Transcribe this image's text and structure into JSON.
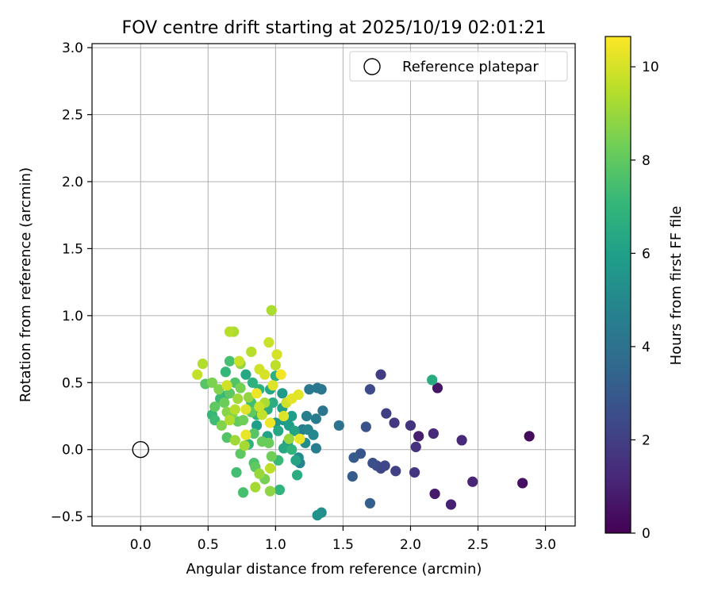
{
  "chart_data": {
    "type": "scatter",
    "title": "FOV centre drift starting at 2025/10/19 02:01:21",
    "xlabel": "Angular distance from reference (arcmin)",
    "ylabel": "Rotation from reference (arcmin)",
    "xlim": [
      -0.36,
      3.22
    ],
    "ylim": [
      -0.57,
      3.03
    ],
    "xticks": [
      0.0,
      0.5,
      1.0,
      1.5,
      2.0,
      2.5,
      3.0
    ],
    "xtick_labels": [
      "0.0",
      "0.5",
      "1.0",
      "1.5",
      "2.0",
      "2.5",
      "3.0"
    ],
    "yticks": [
      -0.5,
      0.0,
      0.5,
      1.0,
      1.5,
      2.0,
      2.5,
      3.0
    ],
    "ytick_labels": [
      "−0.5",
      "0.0",
      "0.5",
      "1.0",
      "1.5",
      "2.0",
      "2.5",
      "3.0"
    ],
    "grid": true,
    "legend": {
      "position": "top-right",
      "entries": [
        {
          "label": "Reference platepar",
          "marker": "open-circle"
        }
      ]
    },
    "reference_point": {
      "x": 0.0,
      "y": 0.0
    },
    "colorbar": {
      "label": "Hours from first FF file",
      "colormap": "viridis",
      "range": [
        0,
        10.65
      ],
      "ticks": [
        0,
        2,
        4,
        6,
        8,
        10
      ],
      "tick_labels": [
        "0",
        "2",
        "4",
        "6",
        "8",
        "10"
      ],
      "stops": [
        "#440154",
        "#482878",
        "#3e4989",
        "#31688e",
        "#26828e",
        "#1f9e89",
        "#35b779",
        "#6ece58",
        "#b5de2b",
        "#fde725"
      ]
    },
    "series": [
      {
        "name": "FOV centre",
        "points": [
          [
            2.88,
            0.1,
            0.3
          ],
          [
            2.83,
            -0.25,
            0.5
          ],
          [
            2.2,
            0.46,
            0.6
          ],
          [
            2.18,
            -0.33,
            0.8
          ],
          [
            2.06,
            0.1,
            0.9
          ],
          [
            2.3,
            -0.41,
            1.0
          ],
          [
            2.46,
            -0.24,
            1.1
          ],
          [
            2.38,
            0.07,
            1.2
          ],
          [
            2.17,
            0.12,
            1.3
          ],
          [
            2.04,
            0.02,
            1.5
          ],
          [
            2.0,
            0.18,
            1.6
          ],
          [
            2.03,
            -0.17,
            1.7
          ],
          [
            1.88,
            0.2,
            1.8
          ],
          [
            1.78,
            0.56,
            1.9
          ],
          [
            1.82,
            0.27,
            2.0
          ],
          [
            1.89,
            -0.16,
            2.1
          ],
          [
            1.78,
            -0.14,
            2.2
          ],
          [
            1.81,
            -0.12,
            2.3
          ],
          [
            1.75,
            -0.12,
            2.4
          ],
          [
            1.7,
            0.45,
            2.4
          ],
          [
            1.72,
            -0.1,
            2.6
          ],
          [
            1.67,
            0.17,
            2.7
          ],
          [
            1.63,
            -0.03,
            2.8
          ],
          [
            1.58,
            -0.06,
            3.0
          ],
          [
            1.57,
            -0.2,
            3.1
          ],
          [
            1.7,
            -0.4,
            3.2
          ],
          [
            1.47,
            0.18,
            4.0
          ],
          [
            1.35,
            0.29,
            4.1
          ],
          [
            1.34,
            0.45,
            4.2
          ],
          [
            1.31,
            0.46,
            4.3
          ],
          [
            1.25,
            0.45,
            4.3
          ],
          [
            1.3,
            0.23,
            4.4
          ],
          [
            1.3,
            0.01,
            4.5
          ],
          [
            1.23,
            0.25,
            4.6
          ],
          [
            1.2,
            0.15,
            4.6
          ],
          [
            1.18,
            -0.1,
            4.8
          ],
          [
            1.24,
            0.15,
            4.9
          ],
          [
            1.28,
            0.11,
            5.0
          ],
          [
            1.17,
            -0.06,
            5.1
          ],
          [
            1.34,
            -0.47,
            5.3
          ],
          [
            1.31,
            -0.49,
            5.4
          ],
          [
            1.09,
            0.05,
            5.6
          ],
          [
            1.05,
            0.42,
            5.8
          ],
          [
            1.1,
            0.18,
            5.9
          ],
          [
            1.12,
            0.25,
            5.9
          ],
          [
            1.05,
            0.31,
            6.0
          ],
          [
            1.15,
            -0.08,
            6.2
          ],
          [
            1.02,
            0.14,
            6.3
          ],
          [
            0.96,
            0.45,
            6.3
          ],
          [
            1.06,
            0.01,
            6.4
          ],
          [
            2.16,
            0.52,
            6.5
          ],
          [
            1.16,
            -0.19,
            6.6
          ],
          [
            0.94,
            0.3,
            6.6
          ],
          [
            1.0,
            0.55,
            6.7
          ],
          [
            0.83,
            0.5,
            6.8
          ],
          [
            1.03,
            -0.3,
            6.9
          ],
          [
            1.12,
            0.0,
            6.9
          ],
          [
            0.86,
            0.26,
            7.0
          ],
          [
            0.63,
            0.58,
            7.1
          ],
          [
            0.53,
            0.26,
            7.1
          ],
          [
            0.59,
            0.38,
            7.2
          ],
          [
            0.55,
            0.22,
            7.3
          ],
          [
            0.71,
            -0.17,
            7.4
          ],
          [
            0.76,
            -0.32,
            7.5
          ],
          [
            0.66,
            0.66,
            7.5
          ],
          [
            0.84,
            -0.1,
            7.6
          ],
          [
            0.64,
            0.09,
            7.7
          ],
          [
            0.48,
            0.49,
            7.8
          ],
          [
            0.74,
            -0.03,
            7.9
          ],
          [
            0.85,
            -0.13,
            8.0
          ],
          [
            0.55,
            0.32,
            8.0
          ],
          [
            0.72,
            0.21,
            8.1
          ],
          [
            0.62,
            0.35,
            8.2
          ],
          [
            0.9,
            0.06,
            8.2
          ],
          [
            0.97,
            -0.05,
            8.3
          ],
          [
            0.92,
            -0.22,
            8.4
          ],
          [
            0.53,
            0.5,
            8.5
          ],
          [
            0.58,
            0.45,
            8.6
          ],
          [
            0.68,
            0.27,
            8.7
          ],
          [
            0.96,
            -0.31,
            8.8
          ],
          [
            0.8,
            0.39,
            8.9
          ],
          [
            0.88,
            -0.18,
            9.0
          ],
          [
            0.7,
            0.07,
            9.1
          ],
          [
            0.77,
            0.03,
            9.2
          ],
          [
            0.85,
            -0.28,
            9.2
          ],
          [
            0.69,
            0.88,
            9.3
          ],
          [
            0.97,
            1.04,
            9.3
          ],
          [
            0.46,
            0.64,
            9.4
          ],
          [
            0.66,
            0.88,
            9.5
          ],
          [
            0.82,
            0.73,
            9.5
          ],
          [
            0.96,
            -0.14,
            9.6
          ],
          [
            1.0,
            0.63,
            9.6
          ],
          [
            0.42,
            0.56,
            9.7
          ],
          [
            0.73,
            0.66,
            9.8
          ],
          [
            0.95,
            0.8,
            9.8
          ],
          [
            0.88,
            0.6,
            9.9
          ],
          [
            0.64,
            0.48,
            9.9
          ],
          [
            1.01,
            0.71,
            10.0
          ],
          [
            1.06,
            0.25,
            10.1
          ],
          [
            0.98,
            0.48,
            10.1
          ],
          [
            1.17,
            0.41,
            10.2
          ],
          [
            1.18,
            0.08,
            10.3
          ],
          [
            0.78,
            0.11,
            10.3
          ],
          [
            0.86,
            0.42,
            10.4
          ],
          [
            1.04,
            0.56,
            10.5
          ],
          [
            0.74,
            0.64,
            8.9
          ],
          [
            0.6,
            0.18,
            8.6
          ],
          [
            0.66,
            0.42,
            7.9
          ],
          [
            0.7,
            0.5,
            7.7
          ],
          [
            0.82,
            0.35,
            7.4
          ],
          [
            0.88,
            0.45,
            6.8
          ],
          [
            0.78,
            0.56,
            6.4
          ],
          [
            0.94,
            0.1,
            6.1
          ],
          [
            1.0,
            0.2,
            5.6
          ],
          [
            0.92,
            0.35,
            9.3
          ],
          [
            0.76,
            0.22,
            8.3
          ],
          [
            0.84,
            0.12,
            7.8
          ],
          [
            1.08,
            0.35,
            9.9
          ],
          [
            1.12,
            0.38,
            10.2
          ],
          [
            0.72,
            0.38,
            9.1
          ],
          [
            0.64,
            0.28,
            8.7
          ],
          [
            0.9,
            0.26,
            9.7
          ],
          [
            0.95,
            0.05,
            8.2
          ],
          [
            1.02,
            -0.08,
            7.2
          ],
          [
            0.8,
            0.04,
            6.9
          ],
          [
            0.86,
            0.18,
            5.9
          ],
          [
            0.98,
            0.35,
            6.6
          ],
          [
            0.7,
            0.3,
            9.5
          ],
          [
            0.62,
            0.4,
            7.0
          ],
          [
            1.1,
            0.08,
            9.0
          ],
          [
            0.92,
            0.56,
            10.0
          ],
          [
            0.74,
            0.46,
            8.4
          ],
          [
            0.88,
            0.32,
            9.8
          ],
          [
            0.96,
            0.2,
            10.4
          ],
          [
            0.82,
            0.28,
            8.0
          ],
          [
            1.14,
            0.14,
            6.2
          ],
          [
            1.22,
            0.05,
            5.2
          ],
          [
            1.06,
            0.22,
            5.7
          ],
          [
            0.78,
            0.3,
            10.1
          ],
          [
            0.66,
            0.22,
            9.4
          ]
        ]
      }
    ]
  }
}
